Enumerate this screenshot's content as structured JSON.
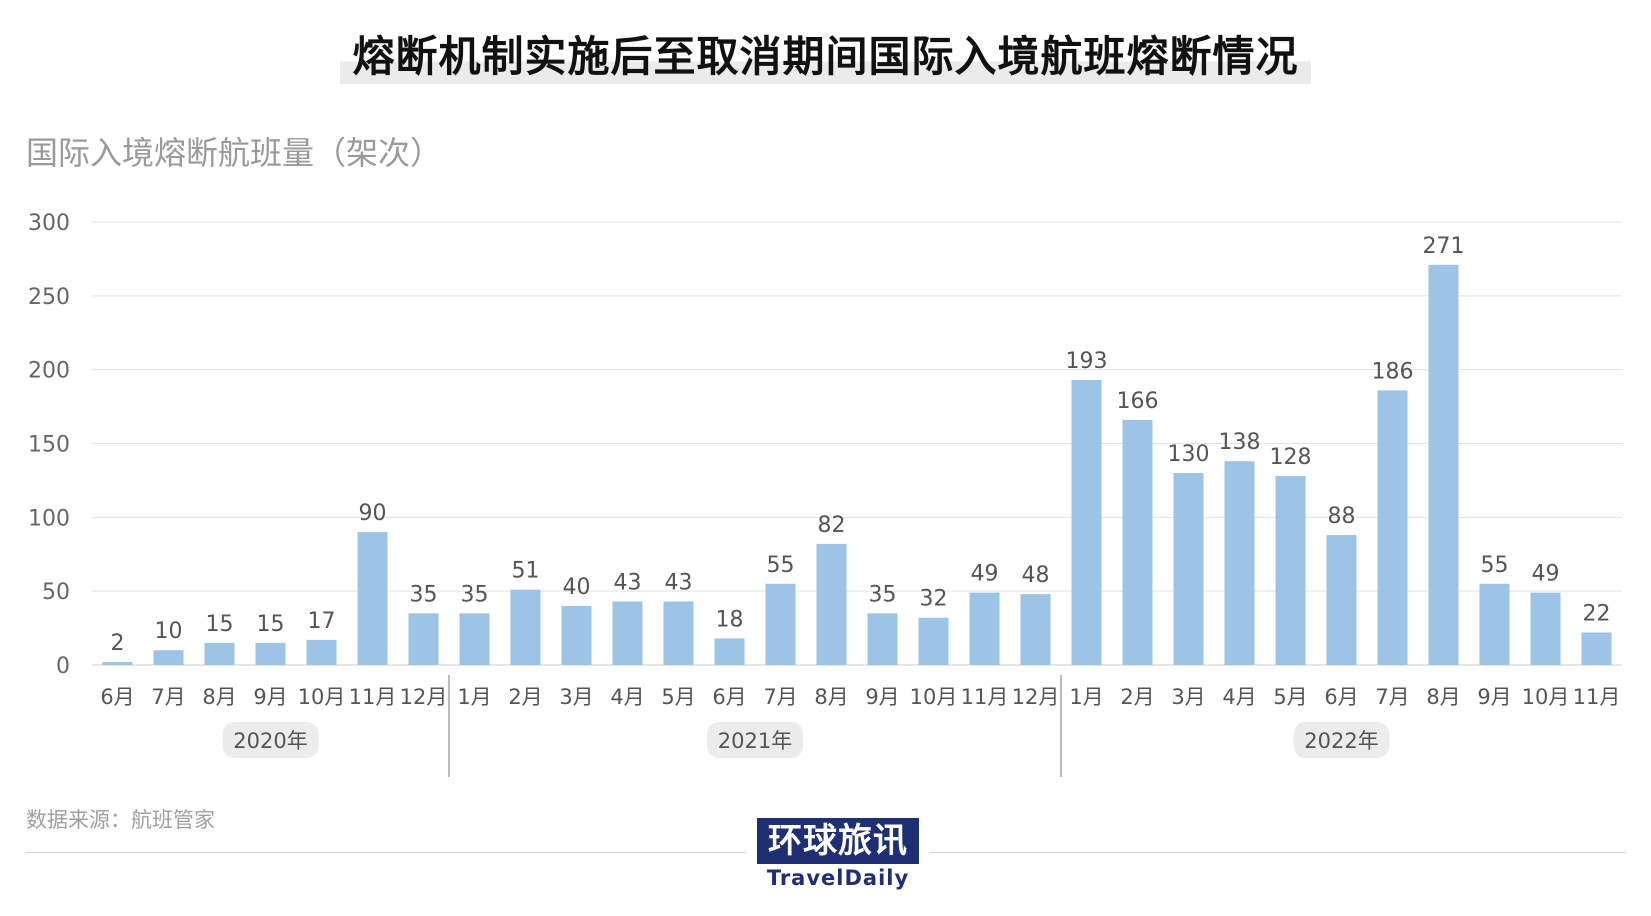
{
  "title": "熔断机制实施后至取消期间国际入境航班熔断情况",
  "source": "数据来源：航班管家",
  "logo": {
    "chinese": "环球旅讯",
    "english": "TravelDaily"
  },
  "colors": {
    "bar": "#9dc3e6",
    "grid": "#e3e3e3",
    "text": "#555555",
    "year_badge": "#ececec",
    "logo_bg": "#1f2f74"
  },
  "chart_data": {
    "type": "bar",
    "title": "熔断机制实施后至取消期间国际入境航班熔断情况",
    "ylabel": "国际入境熔断航班量（架次）",
    "xlabel": "",
    "ylim": [
      0,
      300
    ],
    "yticks": [
      0,
      50,
      100,
      150,
      200,
      250,
      300
    ],
    "grid": true,
    "categories": [
      "6月",
      "7月",
      "8月",
      "9月",
      "10月",
      "11月",
      "12月",
      "1月",
      "2月",
      "3月",
      "4月",
      "5月",
      "6月",
      "7月",
      "8月",
      "9月",
      "10月",
      "11月",
      "12月",
      "1月",
      "2月",
      "3月",
      "4月",
      "5月",
      "6月",
      "7月",
      "8月",
      "9月",
      "10月",
      "11月"
    ],
    "values": [
      2,
      10,
      15,
      15,
      17,
      90,
      35,
      35,
      51,
      40,
      43,
      43,
      18,
      55,
      82,
      35,
      32,
      49,
      48,
      193,
      166,
      130,
      138,
      128,
      88,
      186,
      271,
      55,
      49,
      22
    ],
    "groups": [
      {
        "label": "2020年",
        "start": 0,
        "end": 6
      },
      {
        "label": "2021年",
        "start": 7,
        "end": 18
      },
      {
        "label": "2022年",
        "start": 19,
        "end": 29
      }
    ]
  }
}
